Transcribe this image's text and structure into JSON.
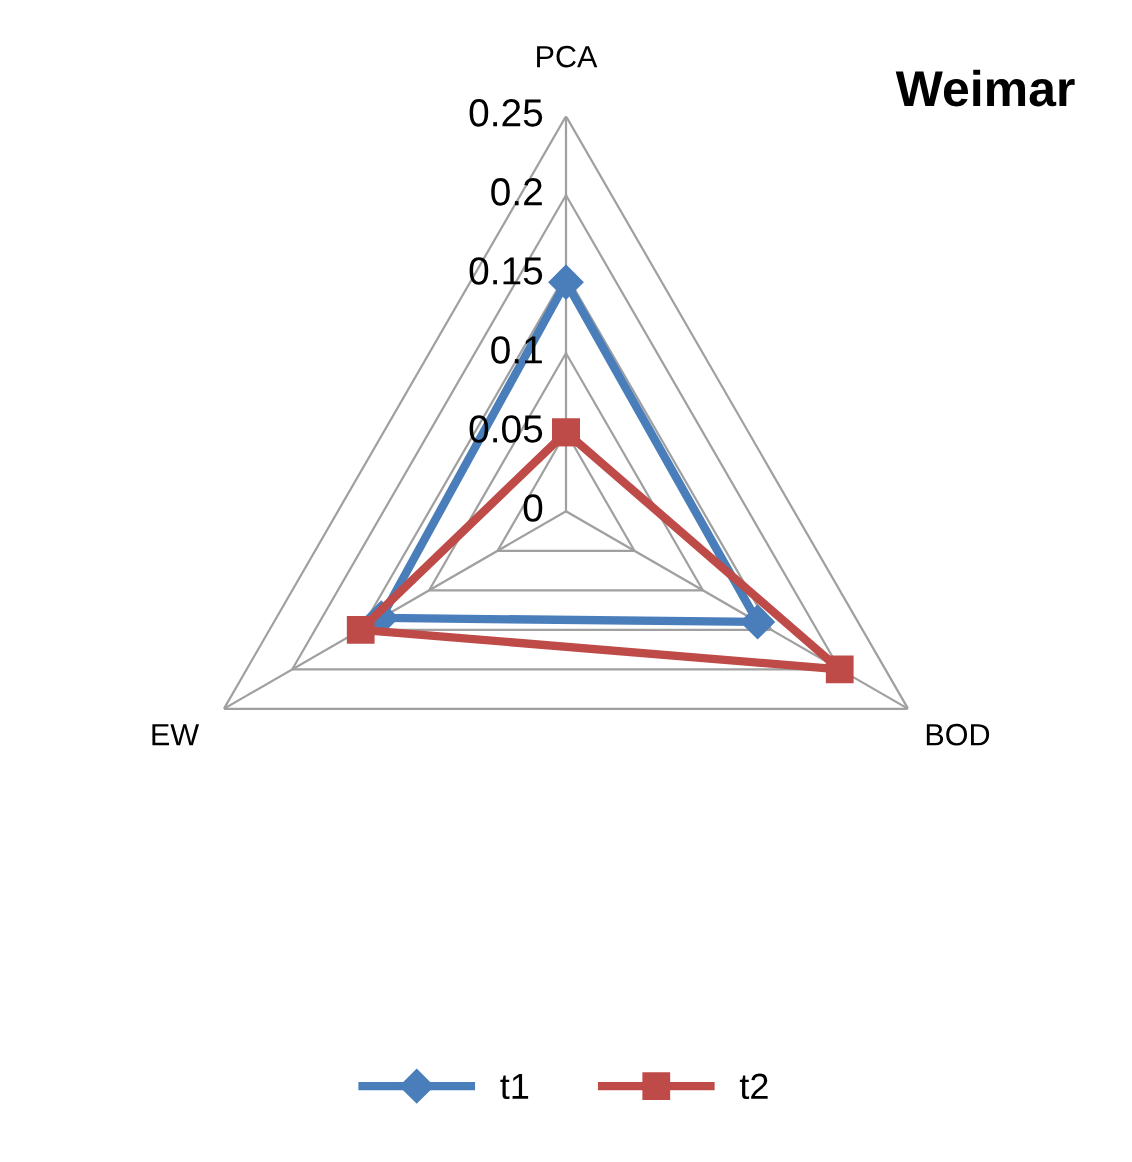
{
  "chart_data": {
    "type": "radar",
    "title": "Weimar",
    "categories": [
      "PCA",
      "BOD",
      "EW"
    ],
    "series": [
      {
        "name": "t1",
        "color": "#4a7ebb",
        "marker": "diamond",
        "values": [
          0.145,
          0.14,
          0.135
        ]
      },
      {
        "name": "t2",
        "color": "#be4b48",
        "marker": "square",
        "values": [
          0.05,
          0.2,
          0.15
        ]
      }
    ],
    "ylim": [
      0,
      0.25
    ],
    "yticks": [
      0,
      0.05,
      0.1,
      0.15,
      0.2,
      0.25
    ],
    "grid": true,
    "legend": "bottom",
    "line_style": "solid"
  }
}
